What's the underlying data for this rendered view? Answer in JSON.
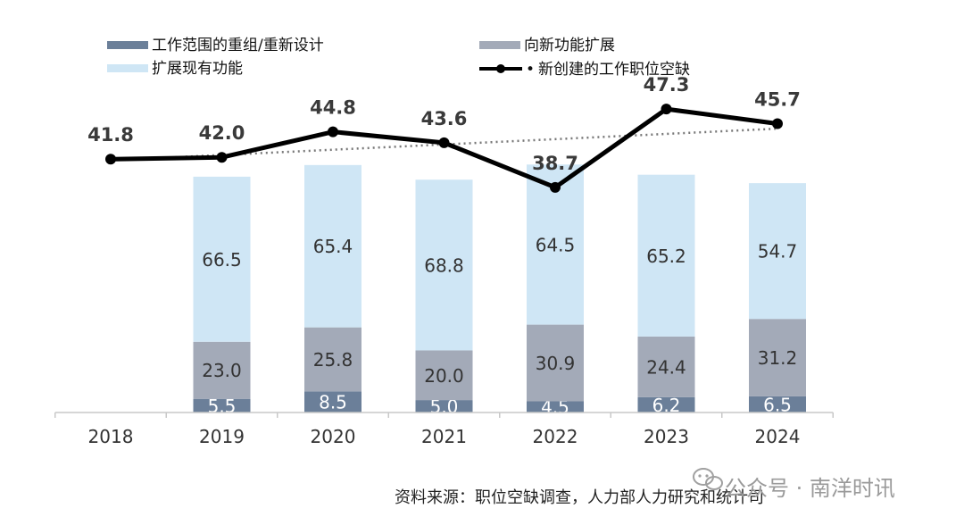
{
  "chart_data": {
    "type": "bar",
    "categories": [
      "2018",
      "2019",
      "2020",
      "2021",
      "2022",
      "2023",
      "2024"
    ],
    "series": [
      {
        "name": "工作范围的重组/重新设计",
        "kind": "stacked-bar",
        "values": [
          null,
          5.5,
          8.5,
          5.0,
          4.5,
          6.2,
          6.5
        ],
        "labels": [
          "",
          "5.5",
          "8.5",
          "5.0",
          "4.5",
          "6.2",
          "6.5"
        ]
      },
      {
        "name": "向新功能扩展",
        "kind": "stacked-bar",
        "values": [
          null,
          23.0,
          25.8,
          20.0,
          30.9,
          24.4,
          31.2
        ],
        "labels": [
          "",
          "23.0",
          "25.8",
          "20.0",
          "30.9",
          "24.4",
          "31.2"
        ]
      },
      {
        "name": "扩展现有功能",
        "kind": "stacked-bar",
        "values": [
          null,
          66.5,
          65.4,
          68.8,
          64.5,
          65.2,
          54.7
        ],
        "labels": [
          "",
          "66.5",
          "65.4",
          "68.8",
          "64.5",
          "65.2",
          "54.7"
        ]
      },
      {
        "name": "新创建的工作职位空缺",
        "kind": "line",
        "values": [
          41.8,
          42.0,
          44.8,
          43.6,
          38.7,
          47.3,
          45.7
        ],
        "labels": [
          "41.8",
          "42.0",
          "44.8",
          "43.6",
          "38.7",
          "47.3",
          "45.7"
        ]
      }
    ],
    "trendline": {
      "style": "dotted",
      "of": "新创建的工作职位空缺"
    },
    "legend_marker_text": "•",
    "source": "资料来源：职位空缺调查，人力部人力研究和统计司",
    "colors": {
      "redesign": "#6b7f99",
      "new_function": "#a3aab8",
      "existing": "#cfe6f5",
      "line": "#000000",
      "trend": "#777777"
    }
  },
  "watermark": {
    "text": "公众号 · 南洋时讯",
    "icon": "wechat-icon"
  }
}
